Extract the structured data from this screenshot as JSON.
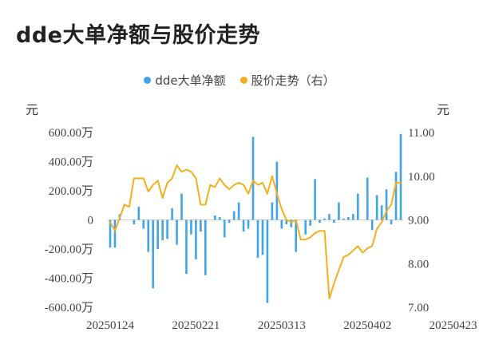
{
  "title": "dde大单净额与股价走势",
  "legend": {
    "dde_label": "dde大单净额",
    "price_label": "股价走势（右）"
  },
  "units": {
    "left": "元",
    "right": "元"
  },
  "colors": {
    "dde_bar": "#3fa4e8",
    "price_line": "#f3b01c",
    "text": "#333333"
  },
  "chart_data": {
    "type": "bar+line",
    "title": "dde大单净额与股价走势",
    "x_tick_labels": [
      "20250124",
      "20250221",
      "20250313",
      "20250402",
      "20250423"
    ],
    "x_tick_positions": [
      0,
      18,
      36,
      54,
      72
    ],
    "left_axis": {
      "ylim": [
        -600,
        600
      ],
      "ticks": [
        600,
        400,
        200,
        0,
        -200,
        -400,
        -600
      ],
      "tick_labels": [
        "600.00万",
        "400.00万",
        "200.00万",
        "0",
        "-200.00万",
        "-400.00万",
        "-600.00万"
      ],
      "unit": "元"
    },
    "right_axis": {
      "ylim": [
        7.0,
        11.0
      ],
      "ticks": [
        11,
        10,
        9,
        8,
        7
      ],
      "tick_labels": [
        "11.00",
        "10.00",
        "9.00",
        "8.00",
        "7.00"
      ],
      "unit": "元"
    },
    "series": [
      {
        "name": "dde大单净额",
        "type": "bar",
        "axis": "left",
        "values": [
          -190,
          -190,
          40,
          0,
          -30,
          90,
          -60,
          -220,
          -470,
          -200,
          -140,
          -130,
          80,
          -170,
          180,
          -370,
          -100,
          -270,
          -80,
          -380,
          0,
          30,
          20,
          -120,
          -20,
          60,
          120,
          -80,
          -60,
          570,
          -260,
          -240,
          -570,
          120,
          400,
          -60,
          -30,
          -50,
          -220,
          0,
          -100,
          -40,
          280,
          -20,
          10,
          40,
          -20,
          120,
          10,
          20,
          40,
          180,
          0,
          290,
          -70,
          170,
          100,
          210,
          -30,
          330,
          590
        ],
        "x_index": [
          0,
          1,
          2,
          3,
          5,
          6,
          7,
          8,
          9,
          10,
          11,
          12,
          13,
          14,
          15,
          16,
          17,
          18,
          19,
          20,
          21,
          22,
          23,
          24,
          25,
          26,
          27,
          28,
          29,
          30,
          31,
          32,
          33,
          34,
          35,
          36,
          37,
          38,
          39,
          40,
          41,
          42,
          43,
          44,
          45,
          46,
          47,
          48,
          49,
          50,
          51,
          52,
          53,
          54,
          55,
          56,
          57,
          58,
          59,
          60,
          61
        ]
      },
      {
        "name": "股价走势（右）",
        "type": "line",
        "axis": "right",
        "values": [
          8.95,
          8.75,
          9.05,
          9.35,
          9.3,
          9.95,
          9.95,
          9.95,
          9.65,
          9.8,
          9.9,
          9.5,
          9.85,
          9.95,
          10.25,
          10.1,
          10.15,
          10.1,
          9.95,
          9.35,
          9.35,
          9.8,
          9.75,
          9.95,
          9.8,
          9.7,
          9.8,
          9.85,
          9.8,
          9.6,
          9.9,
          9.8,
          9.85,
          9.6,
          10.0,
          9.6,
          9.25,
          9.0,
          8.95,
          9.0,
          8.55,
          8.55,
          8.6,
          8.7,
          8.75,
          8.75,
          7.2,
          7.55,
          7.85,
          8.15,
          8.2,
          8.3,
          8.4,
          8.25,
          8.35,
          8.4,
          8.8,
          8.95,
          9.2,
          9.35,
          9.85,
          9.85
        ],
        "x_index": [
          0,
          1,
          2,
          3,
          4,
          5,
          6,
          7,
          8,
          9,
          10,
          11,
          12,
          13,
          14,
          15,
          16,
          17,
          18,
          19,
          20,
          21,
          22,
          23,
          24,
          25,
          26,
          27,
          28,
          29,
          30,
          31,
          32,
          33,
          34,
          35,
          36,
          37,
          38,
          39,
          40,
          41,
          42,
          43,
          44,
          45,
          46,
          47,
          48,
          49,
          50,
          51,
          52,
          53,
          54,
          55,
          56,
          57,
          58,
          59,
          60,
          61
        ]
      }
    ],
    "grid": false,
    "legend_position": "top-center"
  }
}
